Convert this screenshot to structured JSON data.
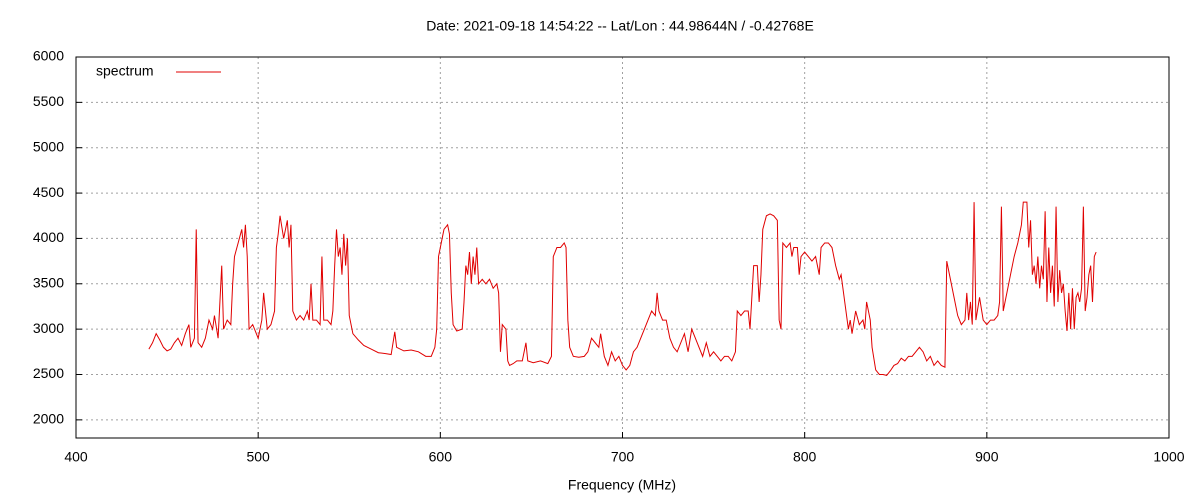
{
  "chart_data": {
    "type": "line",
    "title": "Date: 2021-09-18 14:54:22  --  Lat/Lon : 44.98644N / -0.42768E",
    "x_label": "Frequency (MHz)",
    "xlim": [
      400,
      1000
    ],
    "xticks": [
      400,
      500,
      600,
      700,
      800,
      900,
      1000
    ],
    "ylim": [
      1800,
      6000
    ],
    "yticks": [
      2000,
      2500,
      3000,
      3500,
      4000,
      4500,
      5000,
      5500,
      6000
    ],
    "grid": true,
    "legend": "top-left",
    "x": [
      440,
      442,
      444,
      446,
      448,
      450,
      452,
      454,
      456,
      458,
      460,
      462,
      463,
      465,
      466,
      467,
      469,
      471,
      473,
      475,
      476,
      478,
      480,
      481,
      483,
      485,
      486,
      487,
      489,
      491,
      492,
      493,
      494,
      495,
      497,
      499,
      500,
      502,
      503,
      505,
      507,
      509,
      510,
      511,
      512,
      514,
      516,
      517,
      518,
      519,
      521,
      523,
      525,
      527,
      528,
      529,
      530,
      532,
      534,
      535,
      536,
      538,
      540,
      541,
      542,
      543,
      544,
      545,
      546,
      547,
      548,
      549,
      550,
      552,
      555,
      558,
      562,
      566,
      570,
      573,
      575,
      576,
      580,
      584,
      588,
      592,
      595,
      597,
      598,
      599,
      600,
      602,
      604,
      605,
      606,
      607,
      609,
      612,
      613,
      614,
      615,
      616,
      617,
      618,
      619,
      620,
      621,
      623,
      625,
      627,
      629,
      631,
      632,
      633,
      634,
      636,
      637,
      638,
      640,
      642,
      645,
      647,
      648,
      651,
      655,
      659,
      661,
      662,
      664,
      666,
      668,
      669,
      670,
      671,
      673,
      676,
      679,
      681,
      683,
      685,
      687,
      688,
      690,
      692,
      694,
      696,
      698,
      700,
      702,
      704,
      706,
      708,
      710,
      712,
      714,
      716,
      718,
      719,
      720,
      722,
      724,
      726,
      728,
      730,
      732,
      734,
      736,
      738,
      740,
      742,
      744,
      746,
      748,
      750,
      752,
      754,
      756,
      758,
      760,
      762,
      763,
      765,
      767,
      769,
      770,
      771,
      772,
      774,
      775,
      776,
      777,
      779,
      781,
      783,
      785,
      786,
      787,
      788,
      790,
      792,
      793,
      794,
      796,
      797,
      798,
      800,
      802,
      804,
      806,
      807,
      808,
      809,
      811,
      813,
      815,
      817,
      819,
      820,
      822,
      824,
      825,
      826,
      828,
      830,
      832,
      833,
      834,
      836,
      837,
      839,
      841,
      843,
      845,
      847,
      849,
      851,
      853,
      855,
      857,
      859,
      861,
      863,
      865,
      867,
      869,
      871,
      873,
      875,
      877,
      878,
      880,
      882,
      884,
      886,
      888,
      889,
      890,
      891,
      892,
      893,
      894,
      896,
      898,
      900,
      902,
      904,
      906,
      907,
      908,
      909,
      911,
      913,
      915,
      917,
      919,
      920,
      922,
      923,
      924,
      925,
      926,
      927,
      928,
      929,
      930,
      931,
      932,
      933,
      934,
      935,
      936,
      937,
      938,
      939,
      940,
      941,
      942,
      943,
      944,
      945,
      946,
      947,
      948,
      949,
      950,
      951,
      952,
      953,
      954,
      955,
      956,
      957,
      958,
      959,
      960
    ],
    "series": [
      {
        "name": "spectrum",
        "color": "#e00000",
        "values": [
          2780,
          2850,
          2950,
          2880,
          2800,
          2760,
          2780,
          2850,
          2900,
          2820,
          2950,
          3050,
          2800,
          2900,
          4100,
          2850,
          2800,
          2900,
          3100,
          3000,
          3150,
          2900,
          3700,
          3000,
          3100,
          3050,
          3500,
          3800,
          3950,
          4100,
          3900,
          4150,
          3800,
          3000,
          3050,
          2950,
          2900,
          3100,
          3400,
          3000,
          3050,
          3200,
          3900,
          4050,
          4250,
          4000,
          4200,
          3900,
          4150,
          3200,
          3100,
          3150,
          3100,
          3200,
          3100,
          3500,
          3100,
          3100,
          3050,
          3800,
          3100,
          3100,
          3050,
          3200,
          3700,
          4100,
          3800,
          3900,
          3600,
          4050,
          3700,
          4000,
          3150,
          2950,
          2880,
          2820,
          2780,
          2740,
          2730,
          2720,
          2970,
          2800,
          2760,
          2770,
          2750,
          2700,
          2700,
          2800,
          3000,
          3800,
          3900,
          4100,
          4150,
          4050,
          3400,
          3050,
          2980,
          3000,
          3300,
          3700,
          3600,
          3850,
          3500,
          3800,
          3600,
          3900,
          3500,
          3550,
          3500,
          3550,
          3450,
          3500,
          3400,
          2750,
          3050,
          3000,
          2650,
          2600,
          2620,
          2650,
          2650,
          2850,
          2650,
          2630,
          2650,
          2620,
          2700,
          3800,
          3900,
          3900,
          3950,
          3900,
          3100,
          2800,
          2700,
          2690,
          2700,
          2750,
          2900,
          2850,
          2800,
          2950,
          2700,
          2600,
          2750,
          2650,
          2700,
          2600,
          2550,
          2600,
          2750,
          2800,
          2900,
          3000,
          3100,
          3200,
          3150,
          3400,
          3200,
          3100,
          3100,
          2900,
          2800,
          2750,
          2850,
          2950,
          2750,
          3000,
          2900,
          2800,
          2700,
          2850,
          2700,
          2750,
          2700,
          2650,
          2700,
          2700,
          2650,
          2750,
          3200,
          3150,
          3200,
          3200,
          3000,
          3350,
          3700,
          3700,
          3300,
          3600,
          4100,
          4250,
          4270,
          4250,
          4200,
          3100,
          3000,
          3950,
          3900,
          3950,
          3800,
          3900,
          3900,
          3600,
          3800,
          3850,
          3800,
          3750,
          3800,
          3700,
          3600,
          3900,
          3950,
          3950,
          3900,
          3700,
          3550,
          3600,
          3300,
          3000,
          3100,
          2950,
          3200,
          3050,
          3100,
          3000,
          3300,
          3100,
          2800,
          2550,
          2500,
          2500,
          2490,
          2540,
          2600,
          2620,
          2680,
          2650,
          2700,
          2700,
          2750,
          2800,
          2750,
          2650,
          2700,
          2600,
          2650,
          2600,
          2580,
          3750,
          3550,
          3350,
          3150,
          3050,
          3100,
          3400,
          3100,
          3300,
          3050,
          4400,
          3100,
          3350,
          3100,
          3050,
          3100,
          3100,
          3150,
          3300,
          4350,
          3200,
          3400,
          3600,
          3800,
          3950,
          4150,
          4400,
          4400,
          3900,
          4200,
          3600,
          3700,
          3500,
          3800,
          3450,
          3700,
          3550,
          4300,
          3300,
          3900,
          3400,
          3700,
          3250,
          4350,
          3300,
          3650,
          3400,
          3500,
          3200,
          2980,
          3400,
          3000,
          3450,
          3000,
          3350,
          3400,
          3300,
          3450,
          4350,
          3200,
          3350,
          3600,
          3700,
          3300,
          3800,
          3850
        ]
      }
    ]
  }
}
